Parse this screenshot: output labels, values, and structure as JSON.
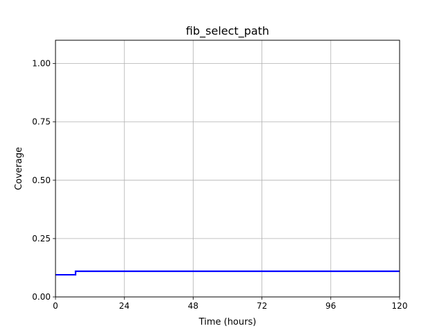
{
  "chart_data": {
    "type": "line",
    "title": "fib_select_path",
    "xlabel": "Time (hours)",
    "ylabel": "Coverage",
    "xlim": [
      0,
      120
    ],
    "ylim": [
      0,
      1.1
    ],
    "xticks": [
      0,
      24,
      48,
      72,
      96,
      120
    ],
    "xtick_labels": [
      "0",
      "24",
      "48",
      "72",
      "96",
      "120"
    ],
    "yticks": [
      0,
      0.25,
      0.5,
      0.75,
      1.0
    ],
    "ytick_labels": [
      "0.00",
      "0.25",
      "0.50",
      "0.75",
      "1.00"
    ],
    "grid": true,
    "series": [
      {
        "color": "#0000ff",
        "step": true,
        "x": [
          0,
          7,
          120
        ],
        "y": [
          0.095,
          0.11,
          0.11
        ]
      }
    ]
  }
}
